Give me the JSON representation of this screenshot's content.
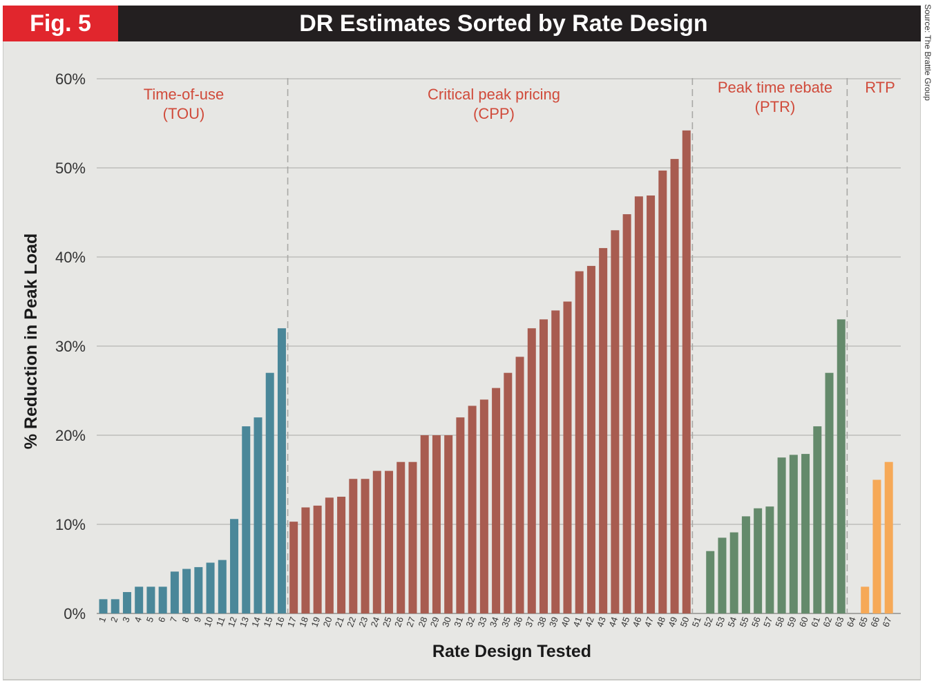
{
  "header": {
    "fig_label": "Fig. 5",
    "title": "DR Estimates Sorted by Rate Design"
  },
  "source": "Source: The Brattle Group",
  "colors": {
    "header_bg": "#231f20",
    "fig_bg": "#e1262d",
    "panel_bg": "#e7e7e4",
    "tou": "#4a8799",
    "cpp": "#a85c50",
    "ptr": "#648a6b",
    "rtp": "#f6a957",
    "group_label": "#d04a3a",
    "gridline": "#b5b5b2",
    "divider": "#a8a8a5"
  },
  "chart_data": {
    "type": "bar",
    "title": "DR Estimates Sorted by Rate Design",
    "xlabel": "Rate Design Tested",
    "ylabel": "% Reduction in Peak Load",
    "ylim": [
      0,
      60
    ],
    "yticks": [
      "0%",
      "10%",
      "20%",
      "30%",
      "40%",
      "50%",
      "60%"
    ],
    "yticks_values": [
      0,
      10,
      20,
      30,
      40,
      50,
      60
    ],
    "grid": true,
    "categories": [
      "1",
      "2",
      "3",
      "4",
      "5",
      "6",
      "7",
      "8",
      "9",
      "10",
      "11",
      "12",
      "13",
      "14",
      "15",
      "16",
      "17",
      "18",
      "19",
      "20",
      "21",
      "22",
      "23",
      "24",
      "25",
      "26",
      "27",
      "28",
      "29",
      "30",
      "31",
      "32",
      "33",
      "34",
      "35",
      "36",
      "37",
      "38",
      "39",
      "40",
      "41",
      "42",
      "43",
      "44",
      "45",
      "46",
      "47",
      "48",
      "49",
      "50",
      "51",
      "52",
      "53",
      "54",
      "55",
      "56",
      "57",
      "58",
      "59",
      "60",
      "61",
      "62",
      "63",
      "64",
      "65",
      "66",
      "67"
    ],
    "values": [
      1.6,
      1.6,
      2.4,
      3.0,
      3.0,
      3.0,
      4.7,
      5.0,
      5.2,
      5.7,
      6.0,
      10.6,
      21.0,
      22.0,
      27.0,
      32.0,
      10.3,
      11.9,
      12.1,
      13.0,
      13.1,
      15.1,
      15.1,
      16.0,
      16.0,
      17.0,
      17.0,
      20.0,
      20.0,
      20.0,
      22.0,
      23.3,
      24.0,
      25.3,
      27.0,
      28.8,
      32.0,
      33.0,
      34.0,
      35.0,
      38.4,
      39.0,
      41.0,
      43.0,
      44.8,
      46.8,
      46.9,
      49.7,
      51.0,
      54.2,
      0,
      7.0,
      8.5,
      9.1,
      10.9,
      11.8,
      12.0,
      17.5,
      17.8,
      17.9,
      21.0,
      27.0,
      33.0,
      0,
      3.0,
      15.0,
      17.0
    ],
    "series_groups": [
      {
        "name": "Time-of-use (TOU)",
        "label_line1": "Time-of-use",
        "label_line2": "(TOU)",
        "start": 1,
        "end": 16,
        "color_key": "tou"
      },
      {
        "name": "Critical peak pricing (CPP)",
        "label_line1": "Critical peak pricing",
        "label_line2": "(CPP)",
        "start": 17,
        "end": 50,
        "color_key": "cpp"
      },
      {
        "name": "Peak time rebate (PTR)",
        "label_line1": "Peak time rebate",
        "label_line2": "(PTR)",
        "start": 51,
        "end": 63,
        "color_key": "ptr"
      },
      {
        "name": "RTP",
        "label_line1": "RTP",
        "label_line2": "",
        "start": 64,
        "end": 67,
        "color_key": "rtp"
      }
    ],
    "dividers_after": [
      16.5,
      50.5,
      63.5
    ]
  }
}
